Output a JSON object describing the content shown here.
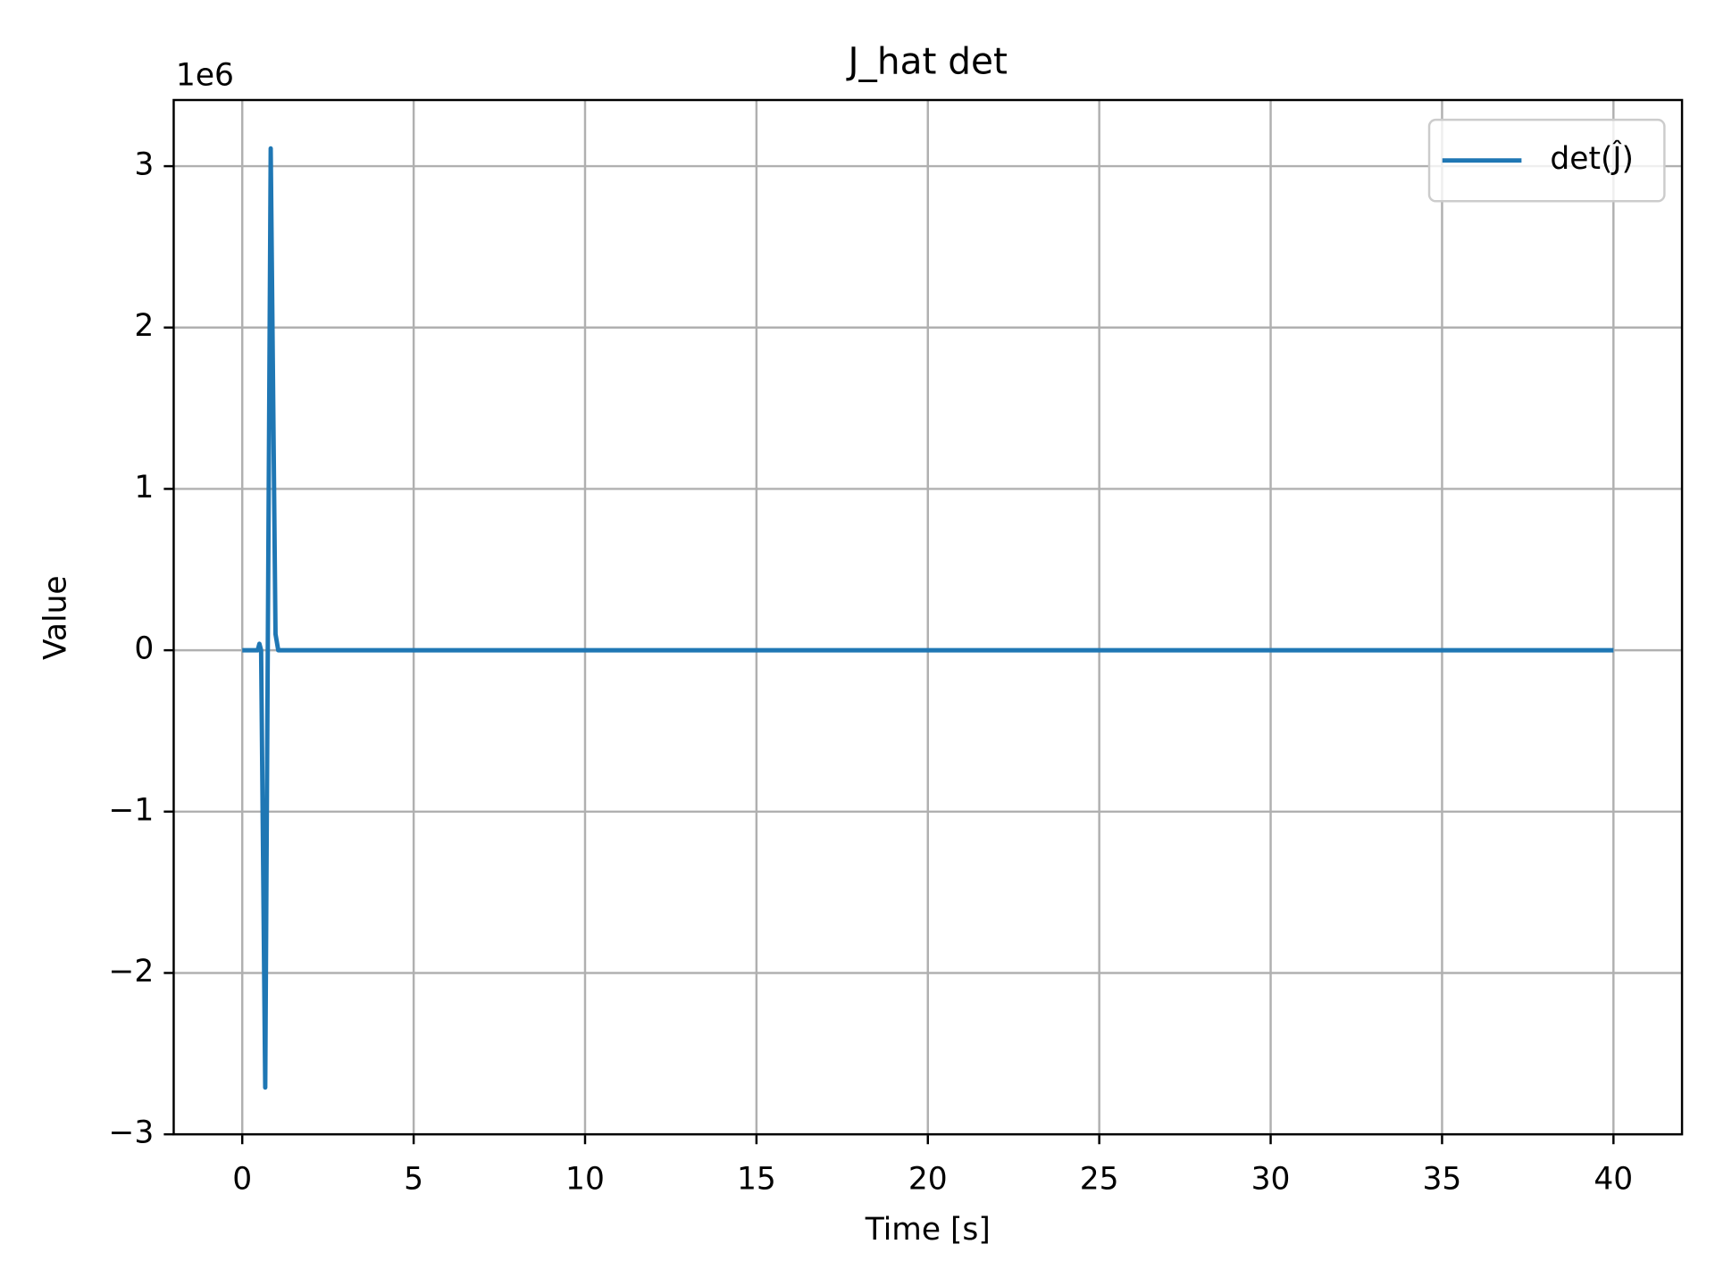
{
  "chart_data": {
    "type": "line",
    "title": "J_hat det",
    "x_label": "Time [s]",
    "y_label": "Value",
    "offset_text": "1e6",
    "series": [
      {
        "name": "det(Ĵ)",
        "color": "#1f77b4",
        "x": [
          0,
          0.45,
          0.5,
          0.55,
          0.67,
          0.83,
          0.97,
          1.05,
          40
        ],
        "values": [
          0,
          0,
          0.04,
          0,
          -2.71,
          3.11,
          0.1,
          0,
          0
        ]
      }
    ],
    "xlim": [
      -2,
      42
    ],
    "xticks": [
      0,
      5,
      10,
      15,
      20,
      25,
      30,
      35,
      40
    ],
    "ylim": [
      -3,
      3.41
    ],
    "yticks": [
      {
        "value": -3,
        "label": "−3"
      },
      {
        "value": -2,
        "label": "−2"
      },
      {
        "value": -1,
        "label": "−1"
      },
      0,
      1,
      2,
      3
    ],
    "grid": true,
    "legend": "upper right"
  }
}
